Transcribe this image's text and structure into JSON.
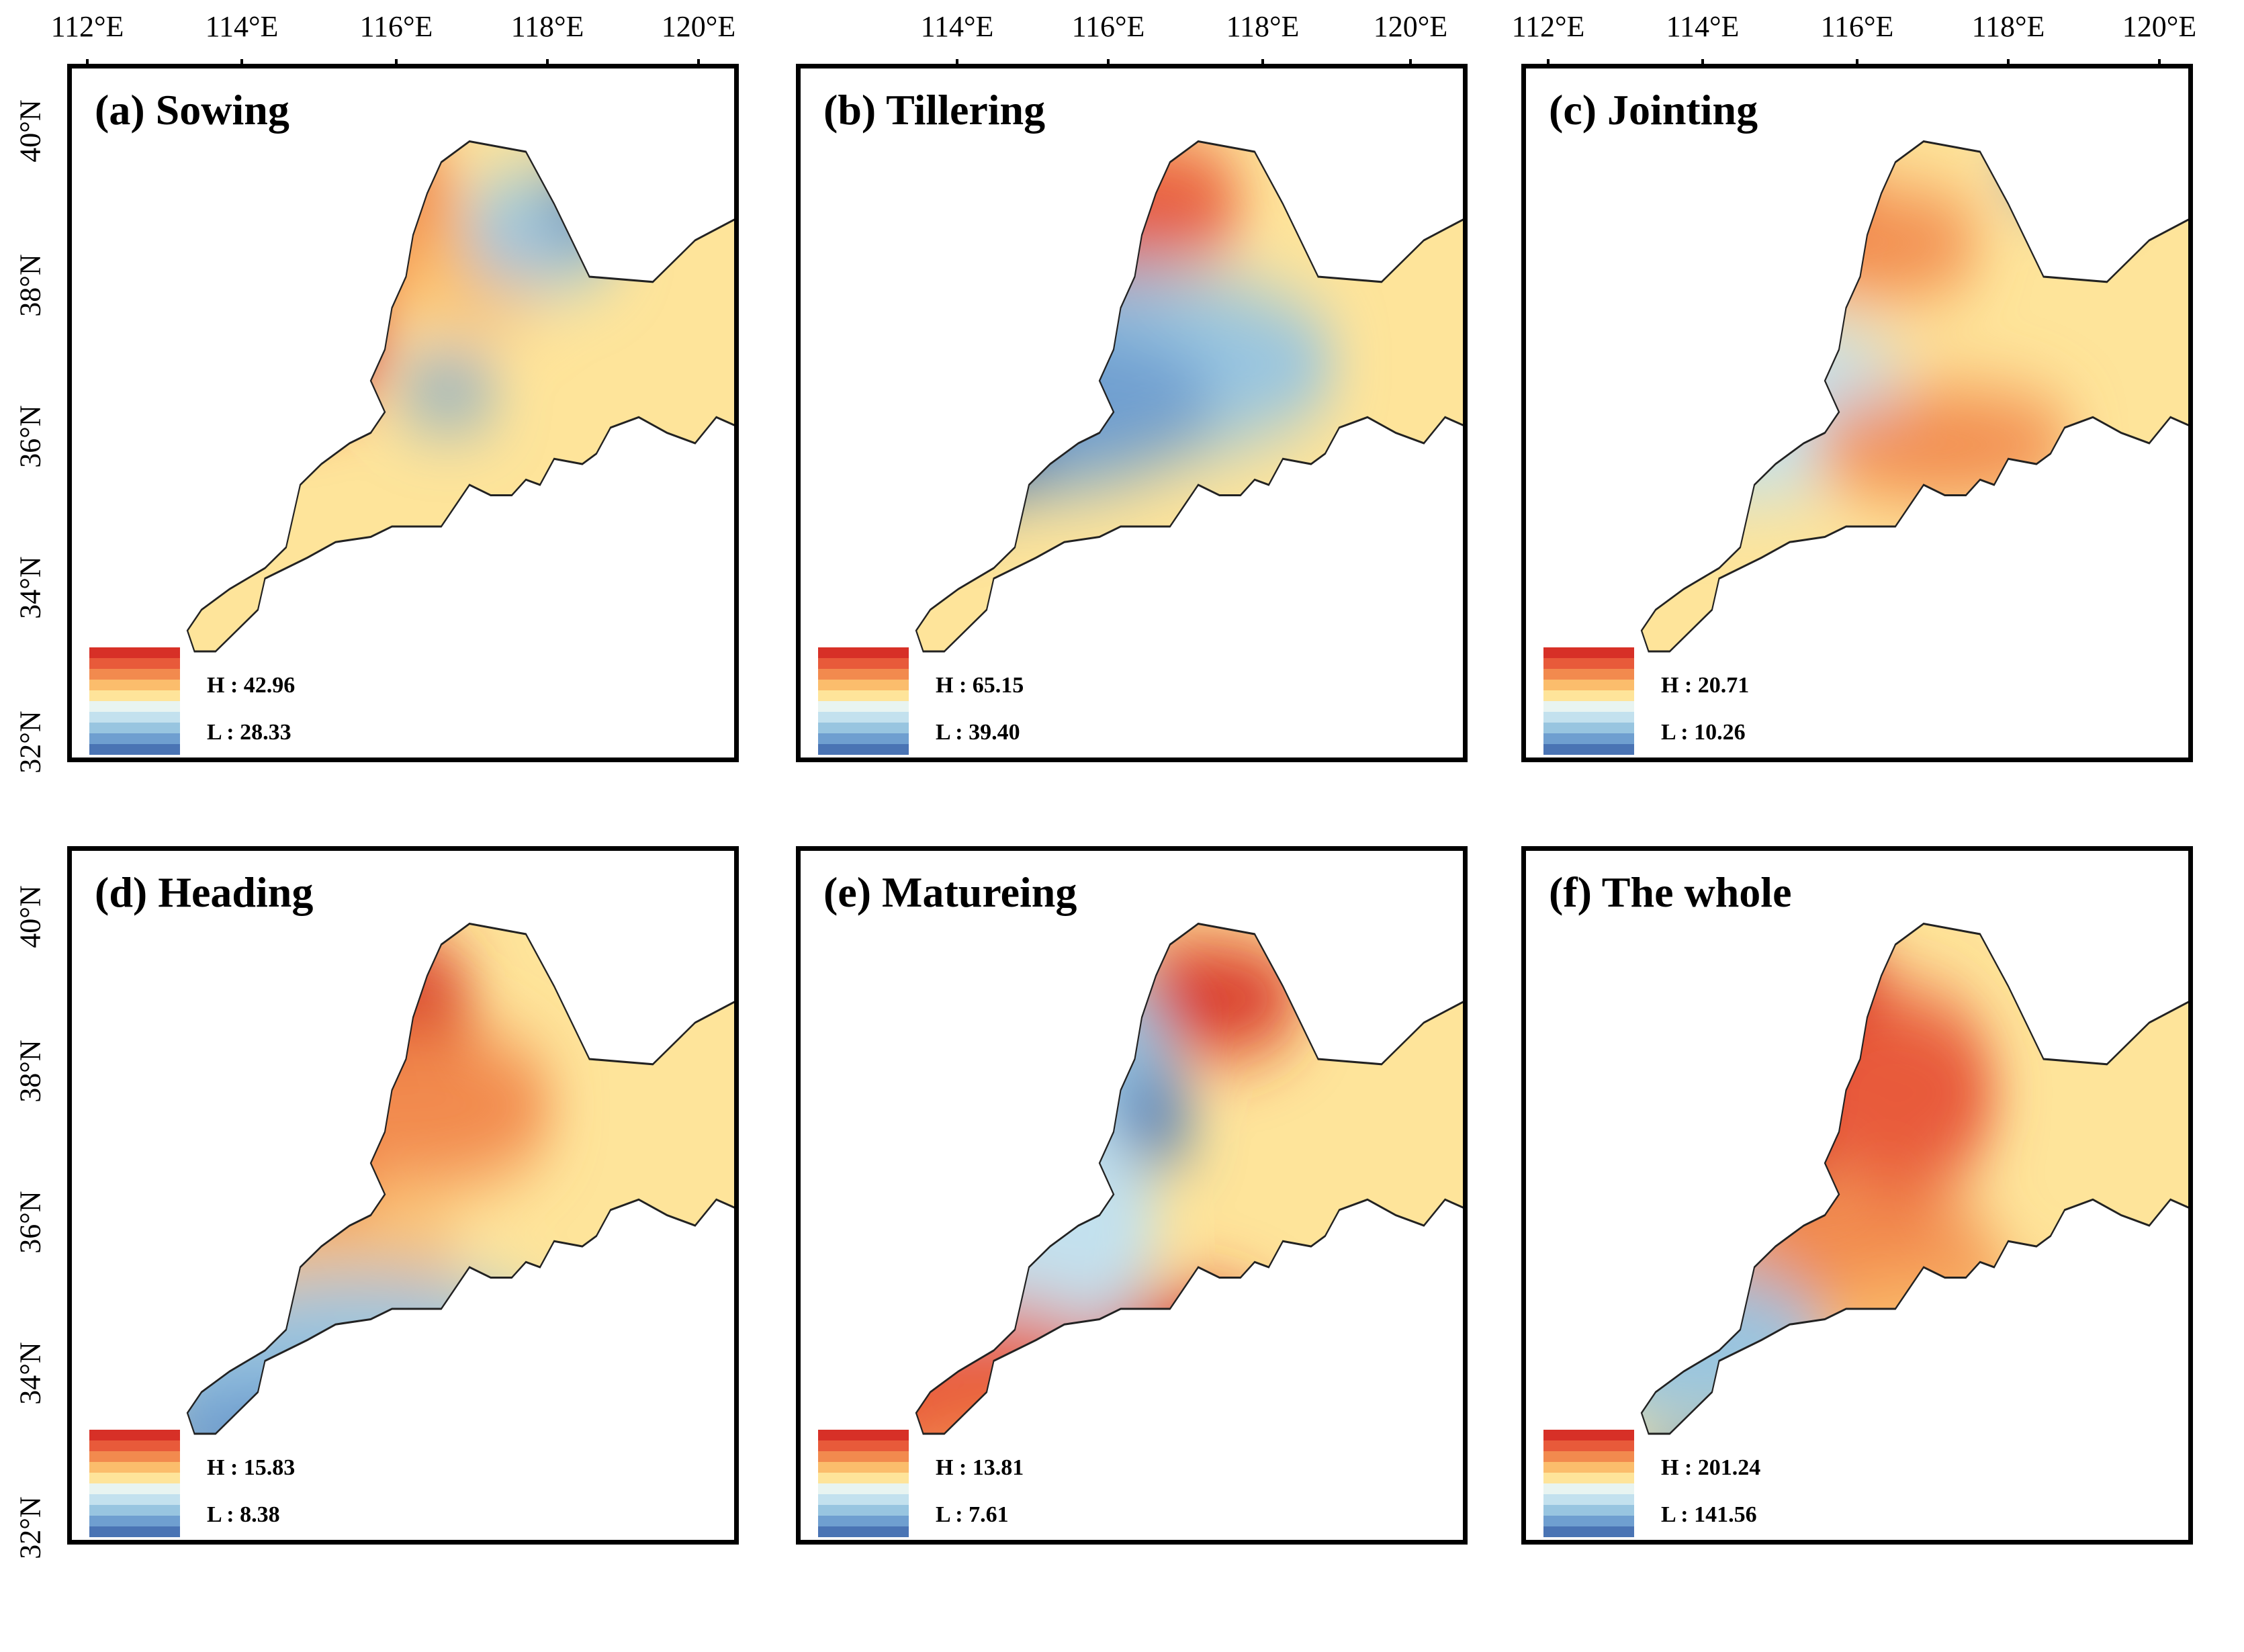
{
  "figure": {
    "top_axis_left": [
      "112°E",
      "114°E",
      "116°E",
      "118°E",
      "120°E"
    ],
    "top_axis_mid": [
      "114°E",
      "116°E",
      "118°E",
      "120°E"
    ],
    "top_axis_right": [
      "112°E",
      "114°E",
      "116°E",
      "118°E",
      "120°E"
    ],
    "left_axis_top": [
      "40°N",
      "38°N",
      "36°N",
      "34°N",
      "32°N"
    ],
    "left_axis_bottom": [
      "40°N",
      "38°N",
      "36°N",
      "34°N",
      "32°N"
    ]
  },
  "colors": {
    "ramp": [
      "#d73027",
      "#e85a3a",
      "#f28a4e",
      "#fbbd6c",
      "#fee49a",
      "#e8f4f1",
      "#c3e1ee",
      "#98c5e0",
      "#6f9fd0",
      "#4a74b4"
    ]
  },
  "panels": [
    {
      "title": "(a) Sowing",
      "h_label": "H : 42.96",
      "l_label": "L : 28.33"
    },
    {
      "title": "(b) Tillering",
      "h_label": "H : 65.15",
      "l_label": "L : 39.40"
    },
    {
      "title": "(c) Jointing",
      "h_label": "H : 20.71",
      "l_label": "L : 10.26"
    },
    {
      "title": "(d) Heading",
      "h_label": "H : 15.83",
      "l_label": "L : 8.38"
    },
    {
      "title": "(e) Matureing",
      "h_label": "H : 13.81",
      "l_label": "L : 7.61"
    },
    {
      "title": "(f) The whole",
      "h_label": "H : 201.24",
      "l_label": "L : 141.56"
    }
  ]
}
